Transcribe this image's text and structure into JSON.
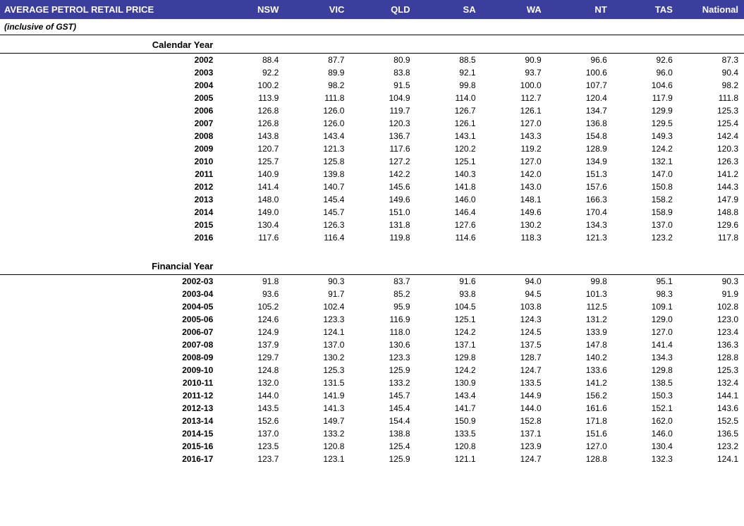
{
  "header": {
    "title": "AVERAGE PETROL RETAIL PRICE",
    "columns": [
      "NSW",
      "VIC",
      "QLD",
      "SA",
      "WA",
      "NT",
      "TAS",
      "National"
    ],
    "bg_color": "#3b3e9c",
    "fg_color": "#ffffff"
  },
  "subtitle": "(inclusive of GST)",
  "sections": [
    {
      "label": "Calendar Year",
      "rows": [
        {
          "year": "2002",
          "vals": [
            "88.4",
            "87.7",
            "80.9",
            "88.5",
            "90.9",
            "96.6",
            "92.6",
            "87.3"
          ]
        },
        {
          "year": "2003",
          "vals": [
            "92.2",
            "89.9",
            "83.8",
            "92.1",
            "93.7",
            "100.6",
            "96.0",
            "90.4"
          ]
        },
        {
          "year": "2004",
          "vals": [
            "100.2",
            "98.2",
            "91.5",
            "99.8",
            "100.0",
            "107.7",
            "104.6",
            "98.2"
          ]
        },
        {
          "year": "2005",
          "vals": [
            "113.9",
            "111.8",
            "104.9",
            "114.0",
            "112.7",
            "120.4",
            "117.9",
            "111.8"
          ]
        },
        {
          "year": "2006",
          "vals": [
            "126.8",
            "126.0",
            "119.7",
            "126.7",
            "126.1",
            "134.7",
            "129.9",
            "125.3"
          ]
        },
        {
          "year": "2007",
          "vals": [
            "126.8",
            "126.0",
            "120.3",
            "126.1",
            "127.0",
            "136.8",
            "129.5",
            "125.4"
          ]
        },
        {
          "year": "2008",
          "vals": [
            "143.8",
            "143.4",
            "136.7",
            "143.1",
            "143.3",
            "154.8",
            "149.3",
            "142.4"
          ]
        },
        {
          "year": "2009",
          "vals": [
            "120.7",
            "121.3",
            "117.6",
            "120.2",
            "119.2",
            "128.9",
            "124.2",
            "120.3"
          ]
        },
        {
          "year": "2010",
          "vals": [
            "125.7",
            "125.8",
            "127.2",
            "125.1",
            "127.0",
            "134.9",
            "132.1",
            "126.3"
          ]
        },
        {
          "year": "2011",
          "vals": [
            "140.9",
            "139.8",
            "142.2",
            "140.3",
            "142.0",
            "151.3",
            "147.0",
            "141.2"
          ]
        },
        {
          "year": "2012",
          "vals": [
            "141.4",
            "140.7",
            "145.6",
            "141.8",
            "143.0",
            "157.6",
            "150.8",
            "144.3"
          ]
        },
        {
          "year": "2013",
          "vals": [
            "148.0",
            "145.4",
            "149.6",
            "146.0",
            "148.1",
            "166.3",
            "158.2",
            "147.9"
          ]
        },
        {
          "year": "2014",
          "vals": [
            "149.0",
            "145.7",
            "151.0",
            "146.4",
            "149.6",
            "170.4",
            "158.9",
            "148.8"
          ]
        },
        {
          "year": "2015",
          "vals": [
            "130.4",
            "126.3",
            "131.8",
            "127.6",
            "130.2",
            "134.3",
            "137.0",
            "129.6"
          ]
        },
        {
          "year": "2016",
          "vals": [
            "117.6",
            "116.4",
            "119.8",
            "114.6",
            "118.3",
            "121.3",
            "123.2",
            "117.8"
          ]
        }
      ]
    },
    {
      "label": "Financial Year",
      "rows": [
        {
          "year": "2002-03",
          "vals": [
            "91.8",
            "90.3",
            "83.7",
            "91.6",
            "94.0",
            "99.8",
            "95.1",
            "90.3"
          ]
        },
        {
          "year": "2003-04",
          "vals": [
            "93.6",
            "91.7",
            "85.2",
            "93.8",
            "94.5",
            "101.3",
            "98.3",
            "91.9"
          ]
        },
        {
          "year": "2004-05",
          "vals": [
            "105.2",
            "102.4",
            "95.9",
            "104.5",
            "103.8",
            "112.5",
            "109.1",
            "102.8"
          ]
        },
        {
          "year": "2005-06",
          "vals": [
            "124.6",
            "123.3",
            "116.9",
            "125.1",
            "124.3",
            "131.2",
            "129.0",
            "123.0"
          ]
        },
        {
          "year": "2006-07",
          "vals": [
            "124.9",
            "124.1",
            "118.0",
            "124.2",
            "124.5",
            "133.9",
            "127.0",
            "123.4"
          ]
        },
        {
          "year": "2007-08",
          "vals": [
            "137.9",
            "137.0",
            "130.6",
            "137.1",
            "137.5",
            "147.8",
            "141.4",
            "136.3"
          ]
        },
        {
          "year": "2008-09",
          "vals": [
            "129.7",
            "130.2",
            "123.3",
            "129.8",
            "128.7",
            "140.2",
            "134.3",
            "128.8"
          ]
        },
        {
          "year": "2009-10",
          "vals": [
            "124.8",
            "125.3",
            "125.9",
            "124.2",
            "124.7",
            "133.6",
            "129.8",
            "125.3"
          ]
        },
        {
          "year": "2010-11",
          "vals": [
            "132.0",
            "131.5",
            "133.2",
            "130.9",
            "133.5",
            "141.2",
            "138.5",
            "132.4"
          ]
        },
        {
          "year": "2011-12",
          "vals": [
            "144.0",
            "141.9",
            "145.7",
            "143.4",
            "144.9",
            "156.2",
            "150.3",
            "144.1"
          ]
        },
        {
          "year": "2012-13",
          "vals": [
            "143.5",
            "141.3",
            "145.4",
            "141.7",
            "144.0",
            "161.6",
            "152.1",
            "143.6"
          ]
        },
        {
          "year": "2013-14",
          "vals": [
            "152.6",
            "149.7",
            "154.4",
            "150.9",
            "152.8",
            "171.8",
            "162.0",
            "152.5"
          ]
        },
        {
          "year": "2014-15",
          "vals": [
            "137.0",
            "133.2",
            "138.8",
            "133.5",
            "137.1",
            "151.6",
            "146.0",
            "136.5"
          ]
        },
        {
          "year": "2015-16",
          "vals": [
            "123.5",
            "120.8",
            "125.4",
            "120.8",
            "123.9",
            "127.0",
            "130.4",
            "123.2"
          ]
        },
        {
          "year": "2016-17",
          "vals": [
            "123.7",
            "123.1",
            "125.9",
            "121.1",
            "124.7",
            "128.8",
            "132.3",
            "124.1"
          ]
        }
      ]
    }
  ],
  "styles": {
    "row_border_color": "#000000",
    "font_family": "Arial",
    "header_font_size": 13,
    "body_font_size": 12
  }
}
